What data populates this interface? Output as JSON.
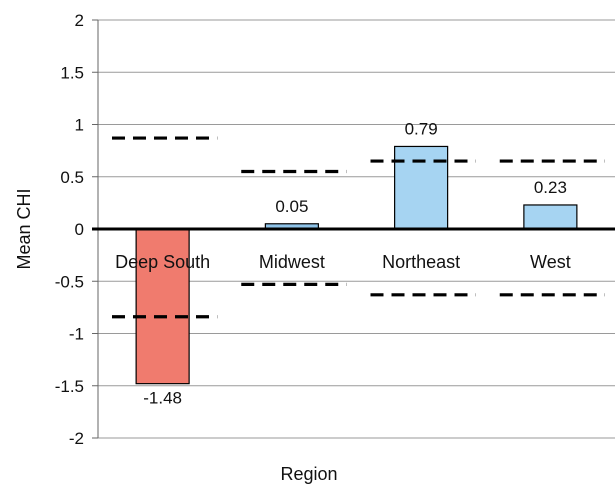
{
  "chart_data": {
    "type": "bar",
    "xlabel": "Region",
    "ylabel": "Mean CHI",
    "ylim": [
      -2,
      2
    ],
    "yticks": [
      "2",
      "1.5",
      "1",
      "0.5",
      "0",
      "-0.5",
      "-1",
      "-1.5",
      "-2"
    ],
    "ytick_values": [
      2,
      1.5,
      1,
      0.5,
      0,
      -0.5,
      -1,
      -1.5,
      -2
    ],
    "categories": [
      "Deep South",
      "Midwest",
      "Northeast",
      "West"
    ],
    "values": [
      -1.48,
      0.05,
      0.79,
      0.23
    ],
    "value_labels": [
      "-1.48",
      "0.05",
      "0.79",
      "0.23"
    ],
    "bar_colors": [
      "#f07b6e",
      "#8fc3e8",
      "#a6d4f2",
      "#a6d4f2"
    ],
    "reference_bounds": [
      {
        "category": "Deep South",
        "upper": 0.87,
        "lower": -0.84
      },
      {
        "category": "Midwest",
        "upper": 0.55,
        "lower": -0.53
      },
      {
        "category": "Northeast",
        "upper": 0.65,
        "lower": -0.63
      },
      {
        "category": "West",
        "upper": 0.65,
        "lower": -0.63
      }
    ],
    "grid": true,
    "legend": "none"
  }
}
